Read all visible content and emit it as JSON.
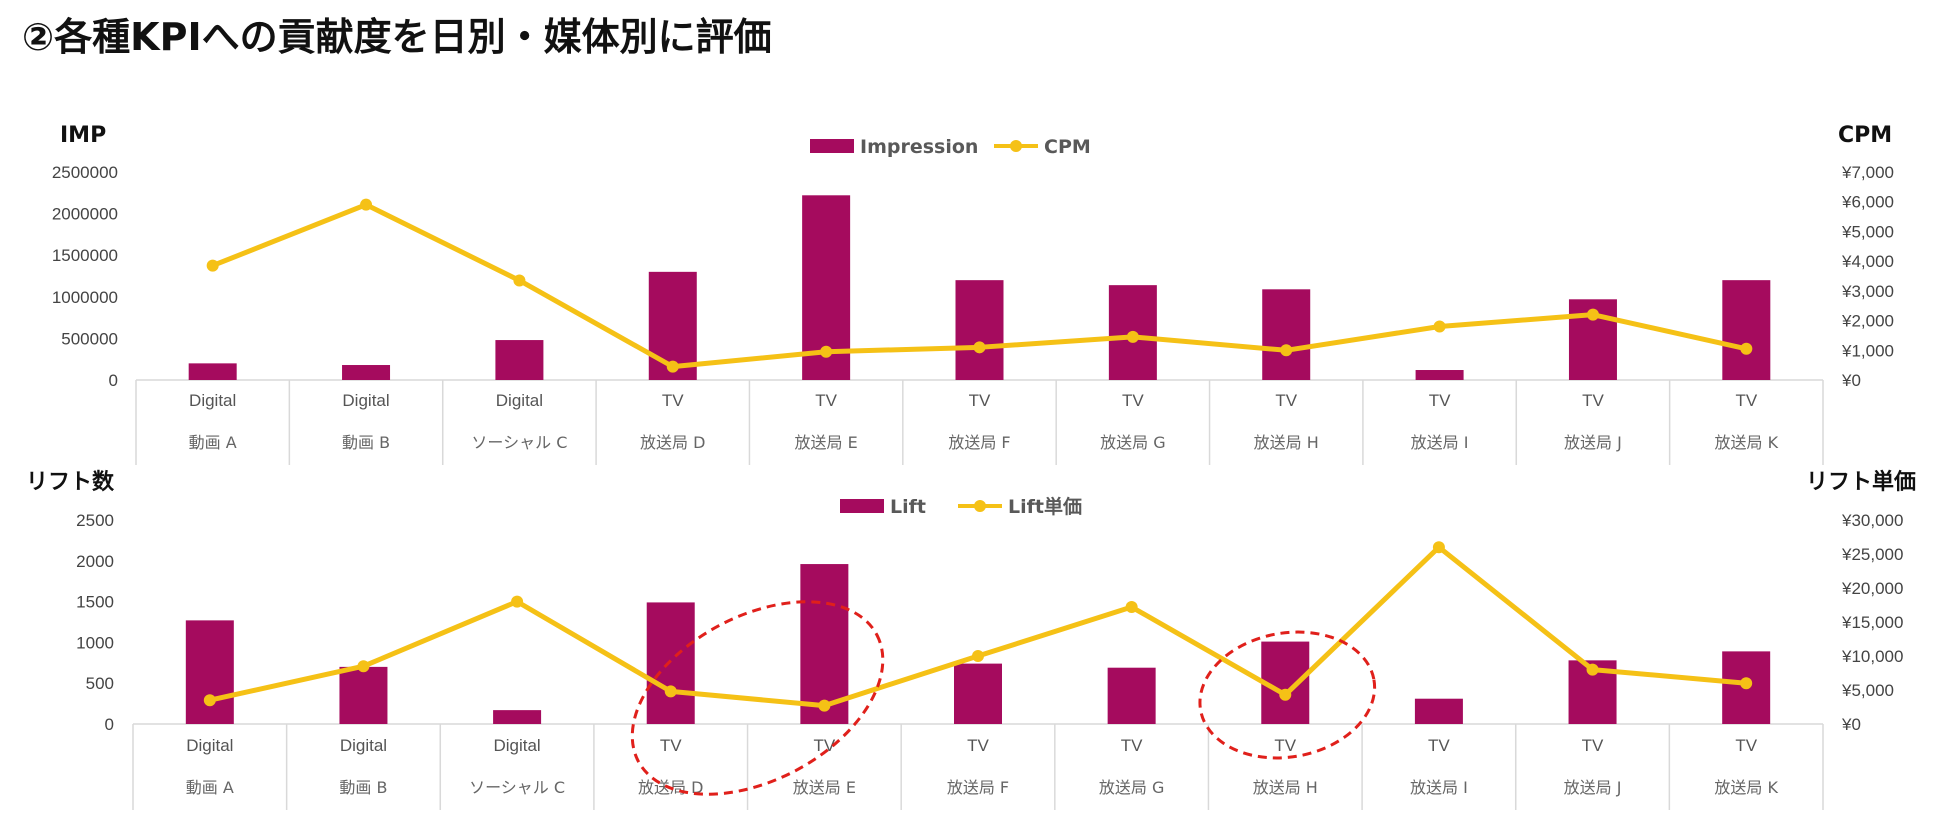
{
  "page": {
    "title": "②各種KPIへの貢献度を日別・媒体別に評価"
  },
  "colors": {
    "bar": "#A50B5E",
    "line": "#F5C116",
    "annotation": "#E0201B",
    "axis": "#D9D9D9"
  },
  "chart_data": [
    {
      "type": "bar",
      "secondary_type": "line",
      "categories": [
        {
          "group": "Digital",
          "label": "動画 A"
        },
        {
          "group": "Digital",
          "label": "動画 B"
        },
        {
          "group": "Digital",
          "label": "ソーシャル C"
        },
        {
          "group": "TV",
          "label": "放送局 D"
        },
        {
          "group": "TV",
          "label": "放送局 E"
        },
        {
          "group": "TV",
          "label": "放送局 F"
        },
        {
          "group": "TV",
          "label": "放送局 G"
        },
        {
          "group": "TV",
          "label": "放送局 H"
        },
        {
          "group": "TV",
          "label": "放送局 I"
        },
        {
          "group": "TV",
          "label": "放送局 J"
        },
        {
          "group": "TV",
          "label": "放送局 K"
        }
      ],
      "series": [
        {
          "name": "Impression",
          "axis": "left",
          "type": "bar",
          "values": [
            200000,
            180000,
            480000,
            1300000,
            2220000,
            1200000,
            1140000,
            1090000,
            120000,
            970000,
            1200000
          ]
        },
        {
          "name": "CPM",
          "axis": "right",
          "type": "line",
          "values": [
            3850,
            5900,
            3350,
            450,
            950,
            1100,
            1450,
            1000,
            1800,
            2200,
            1050
          ]
        }
      ],
      "ylabel": "IMP",
      "y2label": "CPM",
      "ylim": [
        0,
        2500000
      ],
      "y2lim": [
        0,
        7000
      ],
      "yticks": [
        "0",
        "500000",
        "1000000",
        "1500000",
        "2000000",
        "2500000"
      ],
      "y2ticks": [
        "¥0",
        "¥1,000",
        "¥2,000",
        "¥3,000",
        "¥4,000",
        "¥5,000",
        "¥6,000",
        "¥7,000"
      ],
      "legend": "top-center"
    },
    {
      "type": "bar",
      "secondary_type": "line",
      "categories": [
        {
          "group": "Digital",
          "label": "動画 A"
        },
        {
          "group": "Digital",
          "label": "動画 B"
        },
        {
          "group": "Digital",
          "label": "ソーシャル C"
        },
        {
          "group": "TV",
          "label": "放送局 D"
        },
        {
          "group": "TV",
          "label": "放送局 E"
        },
        {
          "group": "TV",
          "label": "放送局 F"
        },
        {
          "group": "TV",
          "label": "放送局 G"
        },
        {
          "group": "TV",
          "label": "放送局 H"
        },
        {
          "group": "TV",
          "label": "放送局 I"
        },
        {
          "group": "TV",
          "label": "放送局 J"
        },
        {
          "group": "TV",
          "label": "放送局 K"
        }
      ],
      "series": [
        {
          "name": "Lift",
          "axis": "left",
          "type": "bar",
          "values": [
            1270,
            700,
            170,
            1490,
            1960,
            740,
            690,
            1010,
            310,
            780,
            890
          ]
        },
        {
          "name": "Lift単価",
          "axis": "right",
          "type": "line",
          "values": [
            3500,
            8500,
            18000,
            4800,
            2700,
            10000,
            17200,
            4300,
            26000,
            8000,
            6000
          ]
        }
      ],
      "ylabel": "リフト数",
      "y2label": "リフト単価",
      "ylim": [
        0,
        2500
      ],
      "y2lim": [
        0,
        30000
      ],
      "yticks": [
        "0",
        "500",
        "1000",
        "1500",
        "2000",
        "2500"
      ],
      "y2ticks": [
        "¥0",
        "¥5,000",
        "¥10,000",
        "¥15,000",
        "¥20,000",
        "¥25,000",
        "¥30,000"
      ],
      "legend": "top-center",
      "annotations": [
        {
          "type": "dashed-ellipse",
          "categories": [
            "放送局 D",
            "放送局 E"
          ]
        },
        {
          "type": "dashed-ellipse",
          "categories": [
            "放送局 H"
          ]
        }
      ]
    }
  ]
}
